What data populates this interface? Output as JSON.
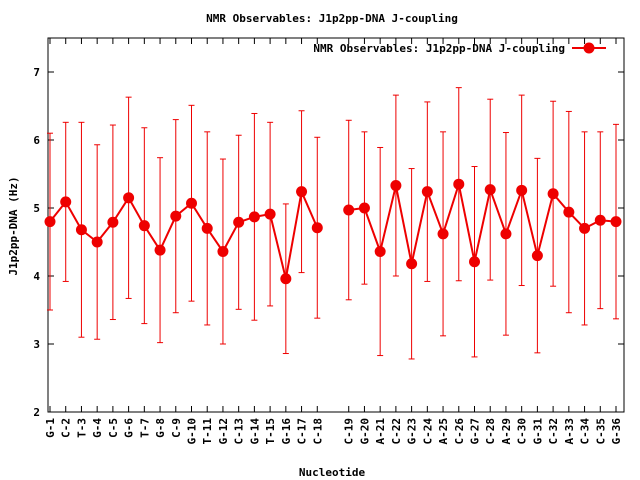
{
  "chart_data": {
    "type": "line",
    "title": "NMR Observables: J1p2pp-DNA J-coupling",
    "xlabel": "Nucleotide",
    "ylabel": "J1p2pp-DNA (Hz)",
    "ylim": [
      2,
      7.5
    ],
    "yticks": [
      2,
      3,
      4,
      5,
      6,
      7
    ],
    "grid": false,
    "legend_position": "top-right",
    "color": "#ee0000",
    "series": [
      {
        "name": "NMR Observables: J1p2pp-DNA J-coupling",
        "segments": [
          [
            {
              "x": "G-1",
              "y": 4.8,
              "err": 1.3
            },
            {
              "x": "C-2",
              "y": 5.09,
              "err": 1.17
            },
            {
              "x": "T-3",
              "y": 4.68,
              "err": 1.58
            },
            {
              "x": "G-4",
              "y": 4.5,
              "err": 1.43
            },
            {
              "x": "C-5",
              "y": 4.79,
              "err": 1.43
            },
            {
              "x": "G-6",
              "y": 5.15,
              "err": 1.48
            },
            {
              "x": "T-7",
              "y": 4.74,
              "err": 1.44
            },
            {
              "x": "G-8",
              "y": 4.38,
              "err": 1.36
            },
            {
              "x": "C-9",
              "y": 4.88,
              "err": 1.42
            },
            {
              "x": "G-10",
              "y": 5.07,
              "err": 1.44
            },
            {
              "x": "T-11",
              "y": 4.7,
              "err": 1.42
            },
            {
              "x": "G-12",
              "y": 4.36,
              "err": 1.36
            },
            {
              "x": "C-13",
              "y": 4.79,
              "err": 1.28
            },
            {
              "x": "G-14",
              "y": 4.87,
              "err": 1.52
            },
            {
              "x": "T-15",
              "y": 4.91,
              "err": 1.35
            },
            {
              "x": "G-16",
              "y": 3.96,
              "err": 1.1
            },
            {
              "x": "C-17",
              "y": 5.24,
              "err": 1.19
            },
            {
              "x": "C-18",
              "y": 4.71,
              "err": 1.33
            }
          ],
          [
            {
              "x": "C-19",
              "y": 4.97,
              "err": 1.32
            },
            {
              "x": "G-20",
              "y": 5.0,
              "err": 1.12
            },
            {
              "x": "A-21",
              "y": 4.36,
              "err": 1.53
            },
            {
              "x": "C-22",
              "y": 5.33,
              "err": 1.33
            },
            {
              "x": "G-23",
              "y": 4.18,
              "err": 1.4
            },
            {
              "x": "C-24",
              "y": 5.24,
              "err": 1.32
            },
            {
              "x": "A-25",
              "y": 4.62,
              "err": 1.5
            },
            {
              "x": "C-26",
              "y": 5.35,
              "err": 1.42
            },
            {
              "x": "G-27",
              "y": 4.21,
              "err": 1.4
            },
            {
              "x": "C-28",
              "y": 5.27,
              "err": 1.33
            },
            {
              "x": "A-29",
              "y": 4.62,
              "err": 1.49
            },
            {
              "x": "C-30",
              "y": 5.26,
              "err": 1.4
            },
            {
              "x": "G-31",
              "y": 4.3,
              "err": 1.43
            },
            {
              "x": "C-32",
              "y": 5.21,
              "err": 1.36
            },
            {
              "x": "A-33",
              "y": 4.94,
              "err": 1.48
            },
            {
              "x": "C-34",
              "y": 4.7,
              "err": 1.42
            },
            {
              "x": "C-35",
              "y": 4.82,
              "err": 1.3
            },
            {
              "x": "G-36",
              "y": 4.8,
              "err": 1.43
            }
          ]
        ]
      }
    ]
  }
}
